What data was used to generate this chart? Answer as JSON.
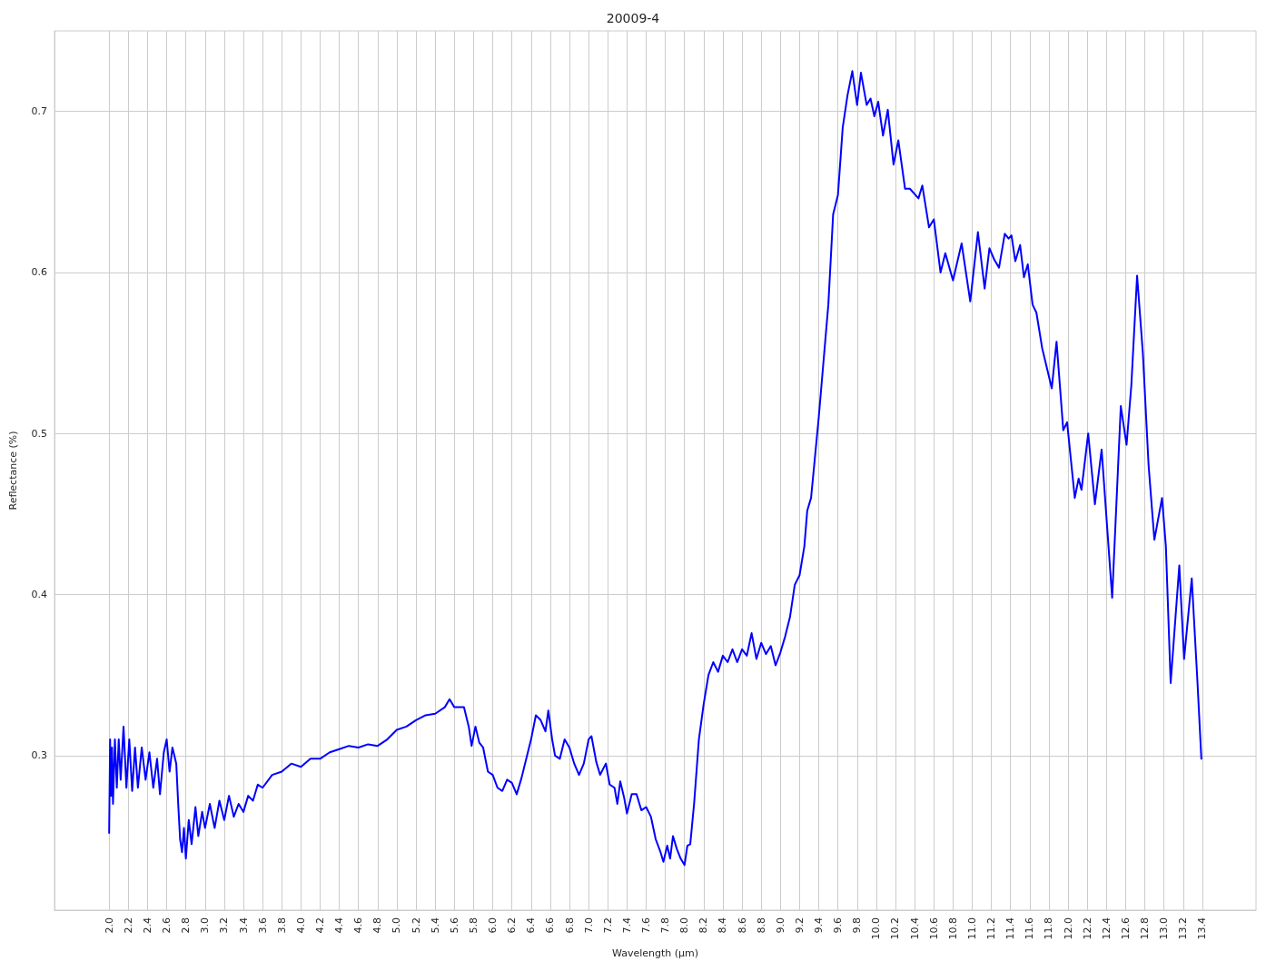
{
  "chart_data": {
    "type": "line",
    "title": "20009-4",
    "xlabel": "Wavelength (µm)",
    "ylabel": "Reflectance (%)",
    "xlim": [
      1.43,
      13.96
    ],
    "ylim": [
      0.204,
      0.75
    ],
    "xticks": [
      {
        "value": 2,
        "label": "2.0"
      },
      {
        "value": 2.2,
        "label": "2.2"
      },
      {
        "value": 2.4,
        "label": "2.4"
      },
      {
        "value": 2.6,
        "label": "2.6"
      },
      {
        "value": 2.8,
        "label": "2.8"
      },
      {
        "value": 3,
        "label": "3.0"
      },
      {
        "value": 3.2,
        "label": "3.2"
      },
      {
        "value": 3.4,
        "label": "3.4"
      },
      {
        "value": 3.6,
        "label": "3.6"
      },
      {
        "value": 3.8,
        "label": "3.8"
      },
      {
        "value": 4,
        "label": "4.0"
      },
      {
        "value": 4.2,
        "label": "4.2"
      },
      {
        "value": 4.4,
        "label": "4.4"
      },
      {
        "value": 4.6,
        "label": "4.6"
      },
      {
        "value": 4.8,
        "label": "4.8"
      },
      {
        "value": 5,
        "label": "5.0"
      },
      {
        "value": 5.2,
        "label": "5.2"
      },
      {
        "value": 5.4,
        "label": "5.4"
      },
      {
        "value": 5.6,
        "label": "5.6"
      },
      {
        "value": 5.8,
        "label": "5.8"
      },
      {
        "value": 6,
        "label": "6.0"
      },
      {
        "value": 6.2,
        "label": "6.2"
      },
      {
        "value": 6.4,
        "label": "6.4"
      },
      {
        "value": 6.6,
        "label": "6.6"
      },
      {
        "value": 6.8,
        "label": "6.8"
      },
      {
        "value": 7,
        "label": "7.0"
      },
      {
        "value": 7.2,
        "label": "7.2"
      },
      {
        "value": 7.4,
        "label": "7.4"
      },
      {
        "value": 7.6,
        "label": "7.6"
      },
      {
        "value": 7.8,
        "label": "7.8"
      },
      {
        "value": 8,
        "label": "8.0"
      },
      {
        "value": 8.2,
        "label": "8.2"
      },
      {
        "value": 8.4,
        "label": "8.4"
      },
      {
        "value": 8.6,
        "label": "8.6"
      },
      {
        "value": 8.8,
        "label": "8.8"
      },
      {
        "value": 9,
        "label": "9.0"
      },
      {
        "value": 9.2,
        "label": "9.2"
      },
      {
        "value": 9.4,
        "label": "9.4"
      },
      {
        "value": 9.6,
        "label": "9.6"
      },
      {
        "value": 9.8,
        "label": "9.8"
      },
      {
        "value": 10,
        "label": "10.0"
      },
      {
        "value": 10.2,
        "label": "10.2"
      },
      {
        "value": 10.4,
        "label": "10.4"
      },
      {
        "value": 10.6,
        "label": "10.6"
      },
      {
        "value": 10.8,
        "label": "10.8"
      },
      {
        "value": 11,
        "label": "11.0"
      },
      {
        "value": 11.2,
        "label": "11.2"
      },
      {
        "value": 11.4,
        "label": "11.4"
      },
      {
        "value": 11.6,
        "label": "11.6"
      },
      {
        "value": 11.8,
        "label": "11.8"
      },
      {
        "value": 12,
        "label": "12.0"
      },
      {
        "value": 12.2,
        "label": "12.2"
      },
      {
        "value": 12.4,
        "label": "12.4"
      },
      {
        "value": 12.6,
        "label": "12.6"
      },
      {
        "value": 12.8,
        "label": "12.8"
      },
      {
        "value": 13,
        "label": "13.0"
      },
      {
        "value": 13.2,
        "label": "13.2"
      },
      {
        "value": 13.4,
        "label": "13.4"
      }
    ],
    "yticks": [
      0.3,
      0.4,
      0.5,
      0.6,
      0.7
    ],
    "grid": true,
    "marker": "none",
    "line_style": "solid",
    "series": [
      {
        "color": "#0000ff",
        "x": [
          2.0,
          2.01,
          2.02,
          2.03,
          2.04,
          2.06,
          2.08,
          2.1,
          2.12,
          2.15,
          2.18,
          2.21,
          2.24,
          2.27,
          2.3,
          2.34,
          2.38,
          2.42,
          2.46,
          2.5,
          2.53,
          2.57,
          2.6,
          2.63,
          2.66,
          2.7,
          2.72,
          2.74,
          2.76,
          2.78,
          2.8,
          2.83,
          2.86,
          2.9,
          2.93,
          2.97,
          3.0,
          3.05,
          3.1,
          3.15,
          3.2,
          3.25,
          3.3,
          3.35,
          3.4,
          3.45,
          3.5,
          3.55,
          3.6,
          3.7,
          3.8,
          3.9,
          4.0,
          4.1,
          4.2,
          4.3,
          4.4,
          4.5,
          4.6,
          4.7,
          4.8,
          4.9,
          5.0,
          5.1,
          5.2,
          5.3,
          5.4,
          5.5,
          5.55,
          5.6,
          5.7,
          5.75,
          5.78,
          5.82,
          5.86,
          5.9,
          5.95,
          6.0,
          6.05,
          6.1,
          6.15,
          6.2,
          6.25,
          6.3,
          6.35,
          6.4,
          6.45,
          6.5,
          6.55,
          6.58,
          6.62,
          6.65,
          6.7,
          6.75,
          6.8,
          6.85,
          6.9,
          6.95,
          7.0,
          7.03,
          7.08,
          7.12,
          7.18,
          7.22,
          7.27,
          7.3,
          7.33,
          7.37,
          7.4,
          7.45,
          7.5,
          7.55,
          7.6,
          7.65,
          7.7,
          7.75,
          7.78,
          7.82,
          7.85,
          7.88,
          7.92,
          7.96,
          8.0,
          8.03,
          8.06,
          8.1,
          8.15,
          8.2,
          8.25,
          8.3,
          8.35,
          8.4,
          8.45,
          8.5,
          8.55,
          8.6,
          8.65,
          8.7,
          8.75,
          8.8,
          8.85,
          8.9,
          8.95,
          9.0,
          9.05,
          9.1,
          9.15,
          9.2,
          9.25,
          9.28,
          9.32,
          9.4,
          9.5,
          9.55,
          9.6,
          9.65,
          9.7,
          9.75,
          9.8,
          9.84,
          9.9,
          9.94,
          9.98,
          10.02,
          10.07,
          10.12,
          10.18,
          10.23,
          10.3,
          10.35,
          10.44,
          10.48,
          10.55,
          10.6,
          10.67,
          10.72,
          10.8,
          10.89,
          10.98,
          11.06,
          11.13,
          11.18,
          11.23,
          11.28,
          11.34,
          11.38,
          11.41,
          11.45,
          11.5,
          11.54,
          11.58,
          11.63,
          11.67,
          11.73,
          11.83,
          11.88,
          11.95,
          11.99,
          12.07,
          12.11,
          12.14,
          12.21,
          12.28,
          12.35,
          12.46,
          12.55,
          12.61,
          12.66,
          12.72,
          12.78,
          12.84,
          12.9,
          12.98,
          13.02,
          13.07,
          13.16,
          13.21,
          13.29,
          13.35,
          13.39
        ],
        "values": [
          0.252,
          0.31,
          0.275,
          0.305,
          0.27,
          0.31,
          0.28,
          0.31,
          0.285,
          0.318,
          0.28,
          0.31,
          0.278,
          0.305,
          0.28,
          0.305,
          0.285,
          0.302,
          0.28,
          0.298,
          0.276,
          0.302,
          0.31,
          0.29,
          0.305,
          0.295,
          0.27,
          0.248,
          0.24,
          0.255,
          0.236,
          0.26,
          0.245,
          0.268,
          0.25,
          0.265,
          0.255,
          0.27,
          0.255,
          0.272,
          0.26,
          0.275,
          0.262,
          0.27,
          0.265,
          0.275,
          0.272,
          0.282,
          0.28,
          0.288,
          0.29,
          0.295,
          0.293,
          0.298,
          0.298,
          0.302,
          0.304,
          0.306,
          0.305,
          0.307,
          0.306,
          0.31,
          0.316,
          0.318,
          0.322,
          0.325,
          0.326,
          0.33,
          0.335,
          0.33,
          0.33,
          0.318,
          0.306,
          0.318,
          0.308,
          0.305,
          0.29,
          0.288,
          0.28,
          0.278,
          0.285,
          0.283,
          0.276,
          0.286,
          0.298,
          0.31,
          0.325,
          0.322,
          0.315,
          0.328,
          0.31,
          0.3,
          0.298,
          0.31,
          0.305,
          0.295,
          0.288,
          0.295,
          0.31,
          0.312,
          0.296,
          0.288,
          0.295,
          0.282,
          0.28,
          0.27,
          0.284,
          0.274,
          0.264,
          0.276,
          0.276,
          0.266,
          0.268,
          0.262,
          0.248,
          0.24,
          0.234,
          0.244,
          0.236,
          0.25,
          0.242,
          0.236,
          0.232,
          0.244,
          0.245,
          0.27,
          0.31,
          0.332,
          0.35,
          0.358,
          0.352,
          0.362,
          0.358,
          0.366,
          0.358,
          0.366,
          0.362,
          0.376,
          0.36,
          0.37,
          0.363,
          0.368,
          0.356,
          0.364,
          0.374,
          0.386,
          0.406,
          0.412,
          0.43,
          0.452,
          0.46,
          0.51,
          0.58,
          0.636,
          0.648,
          0.69,
          0.71,
          0.725,
          0.704,
          0.724,
          0.704,
          0.708,
          0.697,
          0.706,
          0.685,
          0.701,
          0.667,
          0.682,
          0.652,
          0.652,
          0.646,
          0.654,
          0.628,
          0.633,
          0.6,
          0.612,
          0.595,
          0.618,
          0.582,
          0.625,
          0.59,
          0.615,
          0.608,
          0.603,
          0.624,
          0.621,
          0.623,
          0.607,
          0.617,
          0.597,
          0.605,
          0.58,
          0.575,
          0.553,
          0.528,
          0.557,
          0.502,
          0.507,
          0.46,
          0.472,
          0.465,
          0.5,
          0.456,
          0.49,
          0.398,
          0.517,
          0.493,
          0.53,
          0.598,
          0.55,
          0.48,
          0.434,
          0.46,
          0.43,
          0.345,
          0.418,
          0.36,
          0.41,
          0.345,
          0.298
        ]
      }
    ]
  }
}
